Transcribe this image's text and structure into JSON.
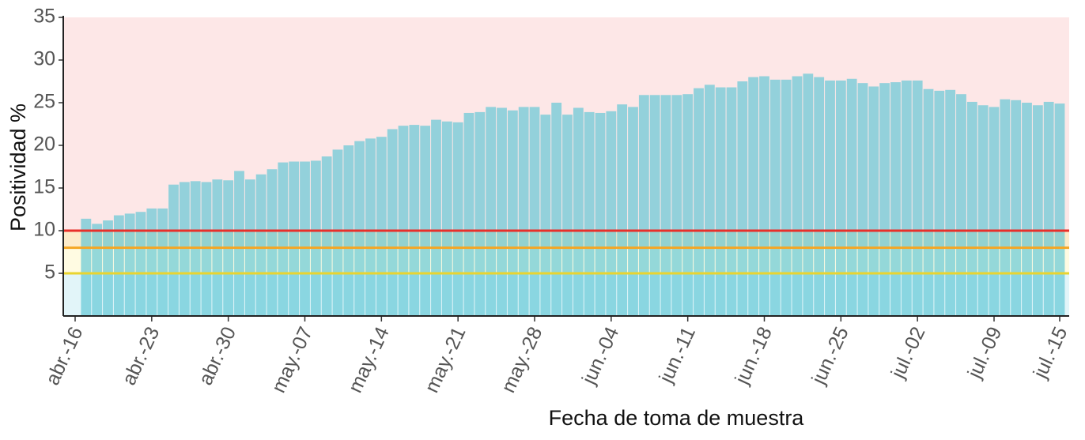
{
  "chart_data": {
    "type": "bar",
    "x_label": "Fecha de toma de muestra",
    "y_label": "Positividad %",
    "color": "#5bc4d4",
    "ylim": [
      0,
      35
    ],
    "yticks": [
      5,
      10,
      15,
      20,
      25,
      30,
      35
    ],
    "bands": [
      {
        "from": 10,
        "to": 35,
        "color": "#fde7e7"
      },
      {
        "from": 8,
        "to": 10,
        "color": "#fdebc9"
      },
      {
        "from": 5,
        "to": 8,
        "color": "#fffbe2"
      },
      {
        "from": 0,
        "to": 5,
        "color": "#e2f5f9"
      }
    ],
    "reference_lines": [
      {
        "value": 10,
        "color": "#e8302a"
      },
      {
        "value": 8,
        "color": "#f5a623"
      },
      {
        "value": 5,
        "color": "#e9d430"
      }
    ],
    "categories": [
      "abr.-16",
      null,
      null,
      null,
      null,
      null,
      null,
      "abr.-23",
      null,
      null,
      null,
      null,
      null,
      null,
      "abr.-30",
      null,
      null,
      null,
      null,
      null,
      null,
      "may.-07",
      null,
      null,
      null,
      null,
      null,
      null,
      "may.-14",
      null,
      null,
      null,
      null,
      null,
      null,
      "may.-21",
      null,
      null,
      null,
      null,
      null,
      null,
      "may.-28",
      null,
      null,
      null,
      null,
      null,
      null,
      "jun.-04",
      null,
      null,
      null,
      null,
      null,
      null,
      "jun.-11",
      null,
      null,
      null,
      null,
      null,
      null,
      "jun.-18",
      null,
      null,
      null,
      null,
      null,
      null,
      "jun.-25",
      null,
      null,
      null,
      null,
      null,
      null,
      "jul.-02",
      null,
      null,
      null,
      null,
      null,
      null,
      "jul.-09",
      null,
      null,
      null,
      null,
      null,
      "jul.-15"
    ],
    "values": [
      null,
      11.4,
      10.8,
      11.2,
      11.8,
      12.0,
      12.2,
      12.6,
      12.6,
      15.4,
      15.7,
      15.8,
      15.7,
      16.0,
      15.9,
      17.0,
      16.0,
      16.6,
      17.2,
      18.0,
      18.1,
      18.1,
      18.2,
      18.7,
      19.5,
      20.0,
      20.5,
      20.8,
      21.0,
      21.9,
      22.3,
      22.4,
      22.3,
      23.0,
      22.8,
      22.7,
      23.8,
      23.9,
      24.5,
      24.4,
      24.1,
      24.5,
      24.5,
      23.6,
      25.0,
      23.6,
      24.4,
      23.9,
      23.8,
      24.0,
      24.8,
      24.5,
      25.9,
      25.9,
      25.9,
      25.9,
      26.0,
      26.7,
      27.1,
      26.8,
      26.8,
      27.5,
      28.0,
      28.1,
      27.7,
      27.7,
      28.1,
      28.4,
      28.0,
      27.6,
      27.6,
      27.8,
      27.3,
      26.9,
      27.3,
      27.4,
      27.6,
      27.6,
      26.6,
      26.4,
      26.5,
      26.0,
      25.1,
      24.7,
      24.5,
      25.4,
      25.3,
      25.0,
      24.7,
      25.1,
      24.9
    ]
  }
}
